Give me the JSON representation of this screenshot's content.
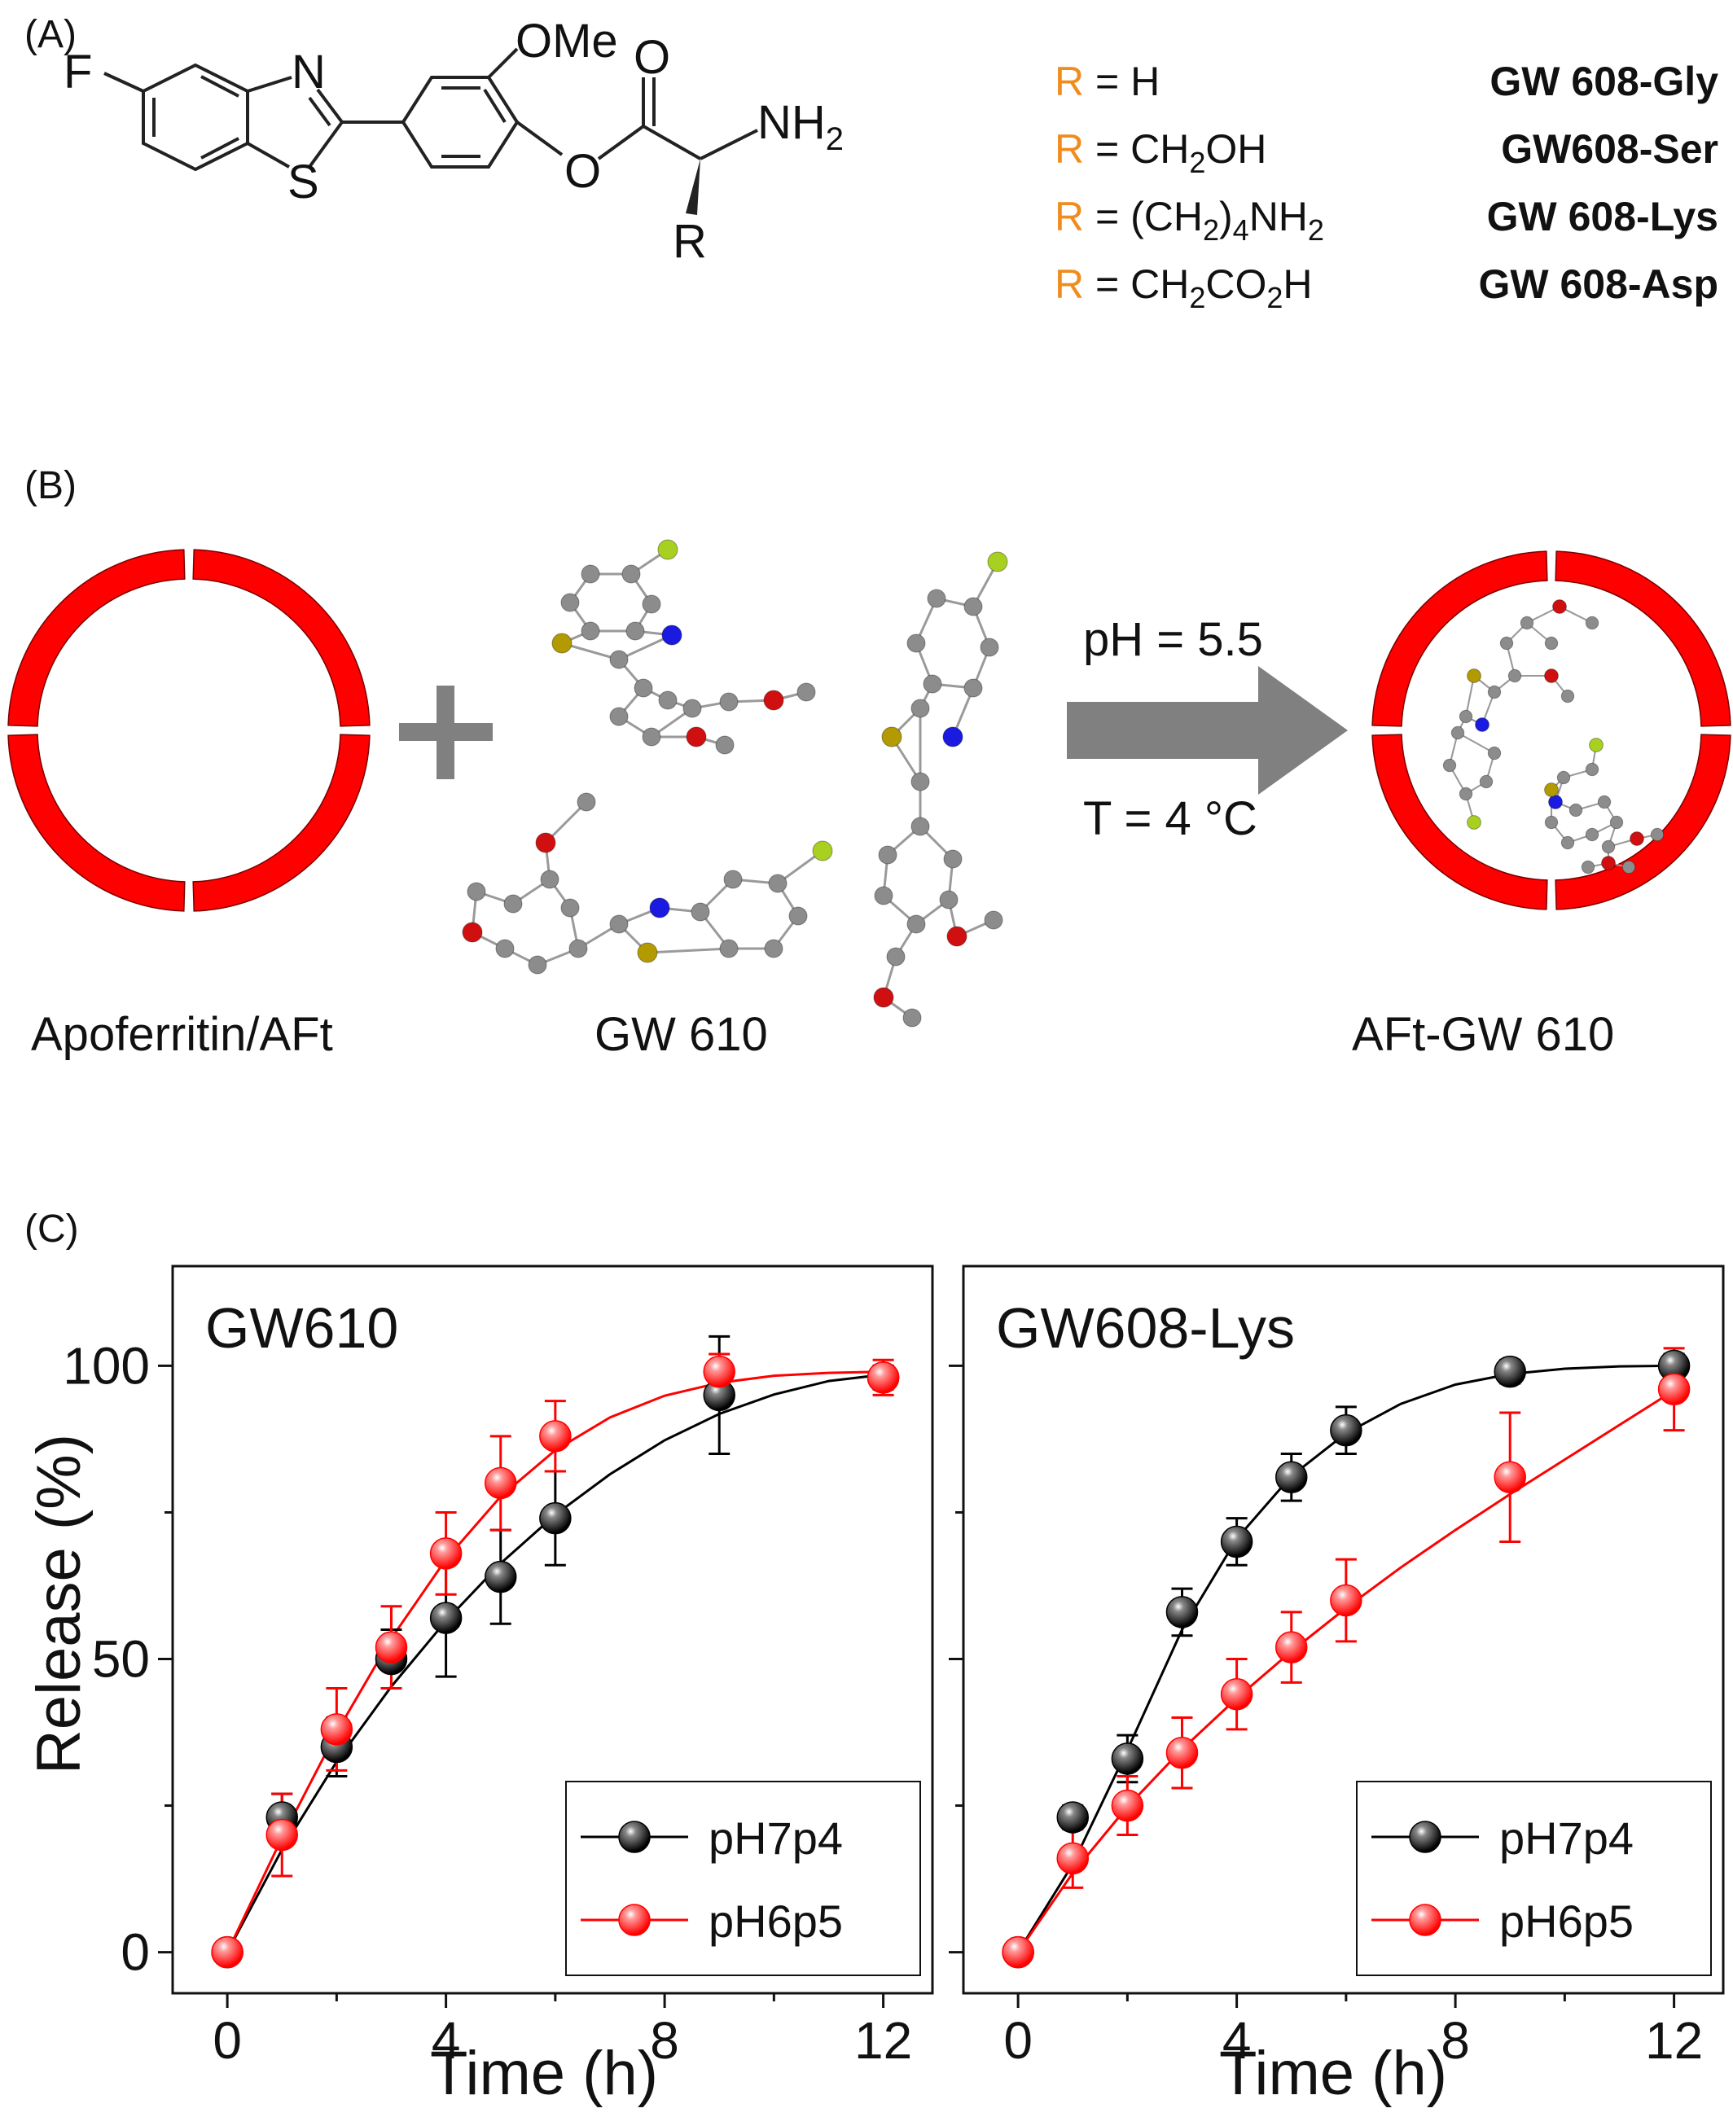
{
  "panels": {
    "a": {
      "label": "(A)",
      "atoms": {
        "F": "F",
        "N": "N",
        "S": "S",
        "OMe": "OMe",
        "O_carbonyl": "O",
        "O_ester": "O",
        "NH": "NH",
        "sub2": "2",
        "R": "R"
      },
      "r_groups": [
        {
          "r": "R",
          "eq": " = H",
          "name": "GW 608-Gly"
        },
        {
          "r": "R",
          "eq_pre": " = CH",
          "sub1": "2",
          "eq_post": "OH",
          "name": "GW608-Ser"
        },
        {
          "r": "R",
          "eq_pre": " = (CH",
          "sub1": "2",
          "mid": ")",
          "sub2": "4",
          "eq_post": "NH",
          "sub3": "2",
          "name": "GW 608-Lys"
        },
        {
          "r": "R",
          "eq_pre": " = CH",
          "sub1": "2",
          "mid": "CO",
          "sub2": "2",
          "eq_post": "H",
          "name": "GW 608-Asp"
        }
      ]
    },
    "b": {
      "label": "(B)",
      "left_caption": "Apoferritin/AFt",
      "middle_caption": "GW 610",
      "right_caption": "AFt-GW  610",
      "condition_top": "pH = 5.5",
      "condition_bottom": "T = 4 °C"
    },
    "c": {
      "label": "(C)",
      "ylabel": "Release (%)",
      "xlabel": "Time (h)"
    }
  },
  "colors": {
    "black_series": "#000000",
    "red_series": "#ff0000",
    "shell": "#ff0000",
    "r_label": "#f08c1e",
    "fluorine": "#33aa33",
    "nitrogen": "#1f2fb0",
    "sulfur": "#8a8a10",
    "oxygen": "#a01818",
    "arrow": "#808080"
  },
  "chart_data": [
    {
      "type": "scatter",
      "title": "GW610",
      "xlabel": "Time (h)",
      "ylabel": "Release (%)",
      "xlim": [
        -1,
        12.9
      ],
      "ylim": [
        -7,
        117
      ],
      "xticks": [
        0,
        4,
        8,
        12
      ],
      "yticks": [
        0,
        50,
        100
      ],
      "legend": "bottom-right",
      "series": [
        {
          "name": "pH7p4",
          "color": "#000000",
          "x": [
            0,
            1,
            2,
            3,
            4,
            5,
            6,
            9,
            12
          ],
          "y": [
            0,
            23,
            35,
            50,
            57,
            64,
            74,
            95,
            98
          ],
          "err": [
            0,
            4,
            5,
            5,
            10,
            8,
            8,
            10,
            2
          ],
          "fit": [
            [
              0,
              0
            ],
            [
              1,
              17.5
            ],
            [
              2,
              32.5
            ],
            [
              3,
              45.3
            ],
            [
              4,
              56.5
            ],
            [
              5,
              66.3
            ],
            [
              6,
              74.6
            ],
            [
              7,
              81.5
            ],
            [
              8,
              87.3
            ],
            [
              9,
              91.8
            ],
            [
              10,
              95.1
            ],
            [
              11,
              97.4
            ],
            [
              12,
              98.5
            ]
          ]
        },
        {
          "name": "pH6p5",
          "color": "#ff0000",
          "x": [
            0,
            1,
            2,
            3,
            4,
            5,
            6,
            9,
            12
          ],
          "y": [
            0,
            20,
            38,
            52,
            68,
            80,
            88,
            99,
            98
          ],
          "err": [
            0,
            7,
            7,
            7,
            7,
            8,
            6,
            3,
            3
          ],
          "fit": [
            [
              0,
              0
            ],
            [
              1,
              19.5
            ],
            [
              2,
              37.5
            ],
            [
              3,
              53.5
            ],
            [
              4,
              67
            ],
            [
              5,
              77.7
            ],
            [
              6,
              85.6
            ],
            [
              7,
              91.2
            ],
            [
              8,
              94.9
            ],
            [
              9,
              97.1
            ],
            [
              10,
              98.3
            ],
            [
              11,
              98.8
            ],
            [
              12,
              99
            ]
          ]
        }
      ]
    },
    {
      "type": "scatter",
      "title": "GW608-Lys",
      "xlabel": "Time (h)",
      "ylabel": "",
      "xlim": [
        -1,
        12.9
      ],
      "ylim": [
        -7,
        117
      ],
      "xticks": [
        0,
        4,
        8,
        12
      ],
      "yticks": [
        0,
        50,
        100
      ],
      "legend": "bottom-right",
      "series": [
        {
          "name": "pH7p4",
          "color": "#000000",
          "x": [
            0,
            1,
            2,
            3,
            4,
            5,
            6,
            9,
            12
          ],
          "y": [
            0,
            23,
            33,
            58,
            70,
            81,
            89,
            99,
            100
          ],
          "err": [
            0,
            2,
            4,
            4,
            4,
            4,
            4,
            2,
            2
          ],
          "fit": [
            [
              0,
              0
            ],
            [
              1,
              15
            ],
            [
              2,
              34.5
            ],
            [
              3,
              55
            ],
            [
              4,
              70.5
            ],
            [
              5,
              81.2
            ],
            [
              6,
              88.5
            ],
            [
              7,
              93.5
            ],
            [
              8,
              96.8
            ],
            [
              9,
              98.6
            ],
            [
              10,
              99.5
            ],
            [
              11,
              99.9
            ],
            [
              12,
              100
            ]
          ]
        },
        {
          "name": "pH6p5",
          "color": "#ff0000",
          "x": [
            0,
            1,
            2,
            3,
            4,
            5,
            6,
            9,
            12
          ],
          "y": [
            0,
            16,
            25,
            34,
            44,
            52,
            60,
            81,
            96
          ],
          "err": [
            0,
            5,
            5,
            6,
            6,
            6,
            7,
            11,
            7
          ],
          "fit": [
            [
              0,
              0
            ],
            [
              1,
              13.5
            ],
            [
              2,
              24.8
            ],
            [
              3,
              34.6
            ],
            [
              4,
              43.3
            ],
            [
              5,
              51.3
            ],
            [
              6,
              58.7
            ],
            [
              7,
              65.6
            ],
            [
              8,
              72
            ],
            [
              9,
              78.1
            ],
            [
              10,
              84
            ],
            [
              11,
              89.9
            ],
            [
              12,
              95.8
            ]
          ]
        }
      ]
    }
  ]
}
